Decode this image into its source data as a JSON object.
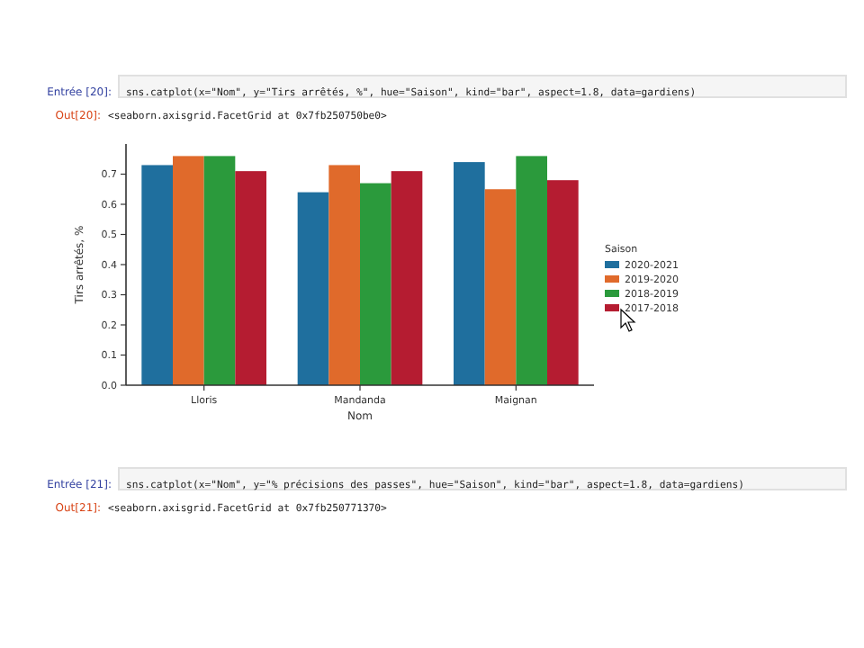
{
  "chart_data": {
    "type": "bar",
    "xlabel": "Nom",
    "ylabel": "Tirs arrêtés, %",
    "legend_title": "Saison",
    "legend": "right",
    "categories": [
      "Lloris",
      "Mandanda",
      "Maignan"
    ],
    "series": [
      {
        "name": "2020-2021",
        "color": "#1f6f9e",
        "values": [
          0.73,
          0.64,
          0.74
        ]
      },
      {
        "name": "2019-2020",
        "color": "#e06a2b",
        "values": [
          0.76,
          0.73,
          0.65
        ]
      },
      {
        "name": "2018-2019",
        "color": "#2b9a3c",
        "values": [
          0.76,
          0.67,
          0.76
        ]
      },
      {
        "name": "2017-2018",
        "color": "#b51c31",
        "values": [
          0.71,
          0.71,
          0.68
        ]
      }
    ],
    "ylim": [
      0,
      0.8
    ],
    "yticks": [
      {
        "value": 0,
        "label": "0.0"
      },
      0.1,
      0.2,
      0.3,
      0.4,
      0.5,
      0.6,
      0.7
    ],
    "annotations": [
      "Entrée [20]:",
      "sns.catplot(x=\"Nom\", y=\"Tirs arrêtés, %\", hue=\"Saison\", kind=\"bar\", aspect=1.8, data=gardiens)",
      "Out[20]:",
      "<seaborn.axisgrid.FacetGrid at 0x7fb250750be0>",
      "Entrée [21]:",
      "sns.catplot(x=\"Nom\", y=\"% précisions des passes\", hue=\"Saison\", kind=\"bar\", aspect=1.8, data=gardiens)",
      "Out[21]:",
      "<seaborn.axisgrid.FacetGrid at 0x7fb250771370>"
    ]
  }
}
